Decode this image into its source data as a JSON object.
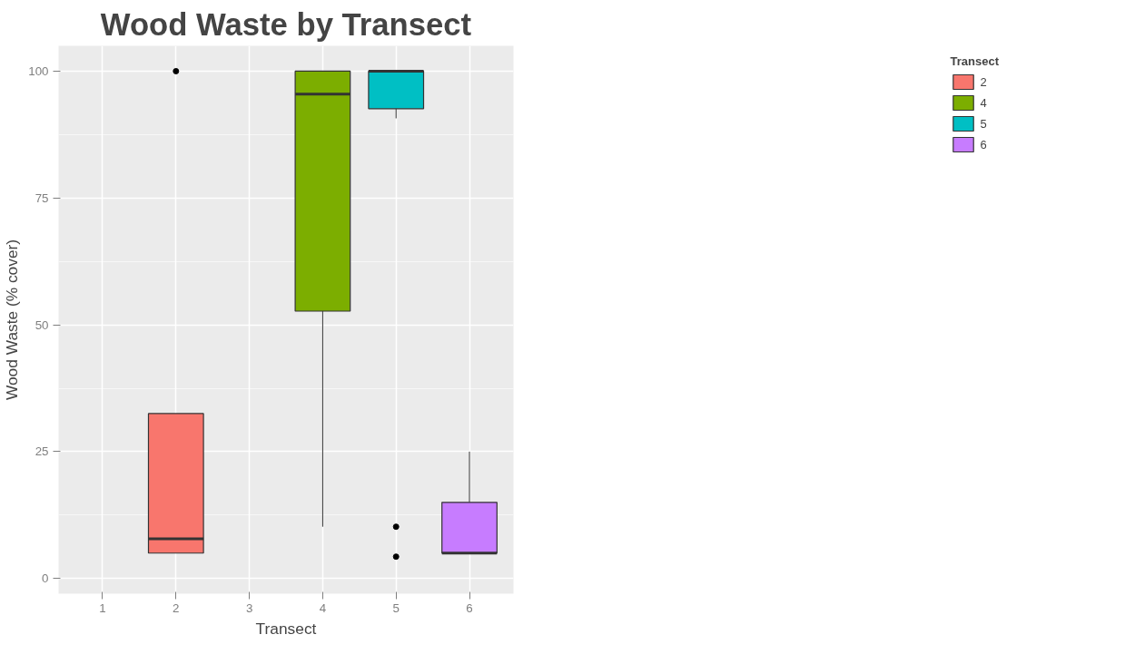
{
  "chart_data": {
    "type": "box",
    "title": "Wood Waste by Transect",
    "xlabel": "Transect",
    "ylabel": "Wood Waste (% cover)",
    "legend_title": "Transect",
    "categories": [
      "1",
      "2",
      "3",
      "4",
      "5",
      "6"
    ],
    "series": [
      {
        "name": "2",
        "color": "#f8766d",
        "boxes": [
          null,
          {
            "low": 5,
            "q1": 5,
            "median": 7.8,
            "q3": 32.5,
            "high": 32.5,
            "outliers": [
              100
            ]
          },
          null,
          null,
          null,
          null
        ]
      },
      {
        "name": "4",
        "color": "#7cae00",
        "boxes": [
          null,
          null,
          null,
          {
            "low": 10.2,
            "q1": 52.7,
            "median": 95.5,
            "q3": 100,
            "high": 100
          },
          null,
          null
        ]
      },
      {
        "name": "5",
        "color": "#00bfc4",
        "boxes": [
          null,
          null,
          null,
          null,
          {
            "low": 90.7,
            "q1": 92.6,
            "median": 100,
            "q3": 100,
            "high": 100,
            "outliers": [
              10.2,
              4.3
            ]
          },
          null
        ]
      },
      {
        "name": "6",
        "color": "#c77cff",
        "boxes": [
          null,
          null,
          null,
          null,
          null,
          {
            "low": 5,
            "q1": 5,
            "median": 5,
            "q3": 15,
            "high": 25
          }
        ]
      }
    ],
    "ylim": [
      -3,
      105
    ],
    "yticks": [
      0,
      25,
      50,
      75,
      100
    ],
    "grid": true,
    "legend": "right"
  }
}
